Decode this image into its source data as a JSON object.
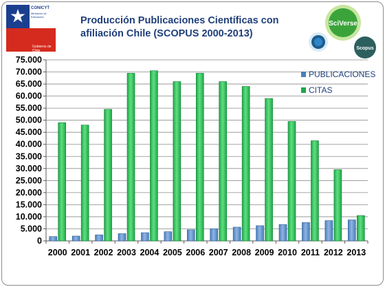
{
  "logo": {
    "name": "CONICYT",
    "line1": "Ministerio de",
    "line2": "Educación",
    "footer": "Gobierno de Chile"
  },
  "sciverse": {
    "name": "SciVerse",
    "sub": "Scopus"
  },
  "colors": {
    "publicaciones": "#4a7ebb",
    "citas": "#1fa64a",
    "title": "#1f3f7a"
  },
  "chart_data": {
    "type": "bar",
    "title": "Producción Publicaciones Científicas con afiliación Chile (SCOPUS 2000-2013)",
    "xlabel": "",
    "ylabel": "",
    "categories": [
      "2000",
      "2001",
      "2002",
      "2003",
      "2004",
      "2005",
      "2006",
      "2007",
      "2008",
      "2009",
      "2010",
      "2011",
      "2012",
      "2013"
    ],
    "series": [
      {
        "name": "PUBLICACIONES",
        "values": [
          1800,
          2000,
          2500,
          3000,
          3400,
          3800,
          4600,
          5000,
          5700,
          6300,
          6800,
          7600,
          8400,
          8700
        ]
      },
      {
        "name": "CITAS",
        "values": [
          49000,
          48000,
          54500,
          69500,
          70500,
          66000,
          69500,
          66000,
          64000,
          59000,
          49500,
          41500,
          29500,
          10500
        ]
      }
    ],
    "ylim": [
      0,
      75000
    ],
    "yticks": [
      "0",
      "5.000",
      "10.000",
      "15.000",
      "20.000",
      "25.000",
      "30.000",
      "35.000",
      "40.000",
      "45.000",
      "50.000",
      "55.000",
      "60.000",
      "65.000",
      "70.000",
      "75.000"
    ],
    "grid": true,
    "legend": "top-right"
  }
}
